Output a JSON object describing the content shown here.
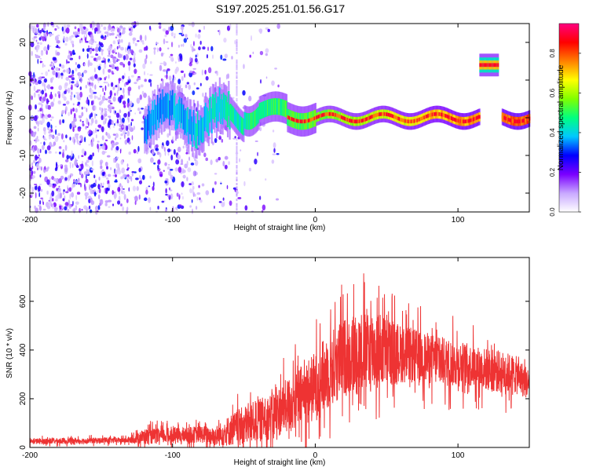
{
  "title": "S197.2025.251.01.56.G17",
  "chart_data": [
    {
      "type": "heatmap",
      "xlabel": "Height of straight line (km)",
      "ylabel": "Frequency (Hz)",
      "xlim": [
        -200,
        150
      ],
      "ylim": [
        -25,
        25
      ],
      "xticks": [
        -200,
        -100,
        0,
        100
      ],
      "yticks": [
        -20,
        -10,
        0,
        10,
        20
      ],
      "colorbar": {
        "label": "Normalized spectral amplitude",
        "range": [
          0,
          0.95
        ],
        "ticks": [
          0.0,
          0.2,
          0.4,
          0.6,
          0.8
        ],
        "colors": [
          "#ffffff",
          "#c8a8ff",
          "#7a00ff",
          "#0000ff",
          "#00c8ff",
          "#00ff80",
          "#80ff00",
          "#ffff00",
          "#ff8000",
          "#ff0000",
          "#ff0080"
        ]
      },
      "features": [
        {
          "name": "noise-region",
          "x_range": [
            -200,
            -55
          ],
          "freq_range": [
            -25,
            25
          ]
        },
        {
          "name": "main-track",
          "x_start": -120,
          "x_end": 150,
          "freq_hz": 0,
          "gap_km": [
            115,
            130
          ]
        },
        {
          "name": "high-blob",
          "x_range": [
            115,
            128
          ],
          "freq_hz": 14
        }
      ]
    },
    {
      "type": "line",
      "xlabel": "Height of straight line (km)",
      "ylabel": "SNR (10 * v/v)",
      "xlim": [
        -200,
        150
      ],
      "ylim": [
        0,
        780
      ],
      "xticks": [
        -200,
        -100,
        0,
        100
      ],
      "yticks": [
        0,
        200,
        400,
        600
      ],
      "color": "#ee3333",
      "envelope": {
        "x": [
          -200,
          -130,
          -120,
          -90,
          -80,
          -70,
          -60,
          -50,
          -40,
          -30,
          -20,
          -10,
          0,
          10,
          20,
          30,
          40,
          50,
          60,
          70,
          80,
          90,
          100,
          110,
          120,
          130,
          140,
          150
        ],
        "mean": [
          25,
          30,
          45,
          50,
          55,
          45,
          70,
          90,
          110,
          130,
          170,
          210,
          250,
          320,
          370,
          390,
          400,
          395,
          385,
          375,
          365,
          350,
          345,
          335,
          320,
          310,
          300,
          260
        ],
        "spread": [
          15,
          15,
          40,
          40,
          45,
          50,
          80,
          100,
          110,
          120,
          140,
          160,
          180,
          200,
          200,
          220,
          220,
          180,
          150,
          140,
          130,
          130,
          120,
          110,
          110,
          110,
          100,
          80
        ]
      }
    }
  ]
}
